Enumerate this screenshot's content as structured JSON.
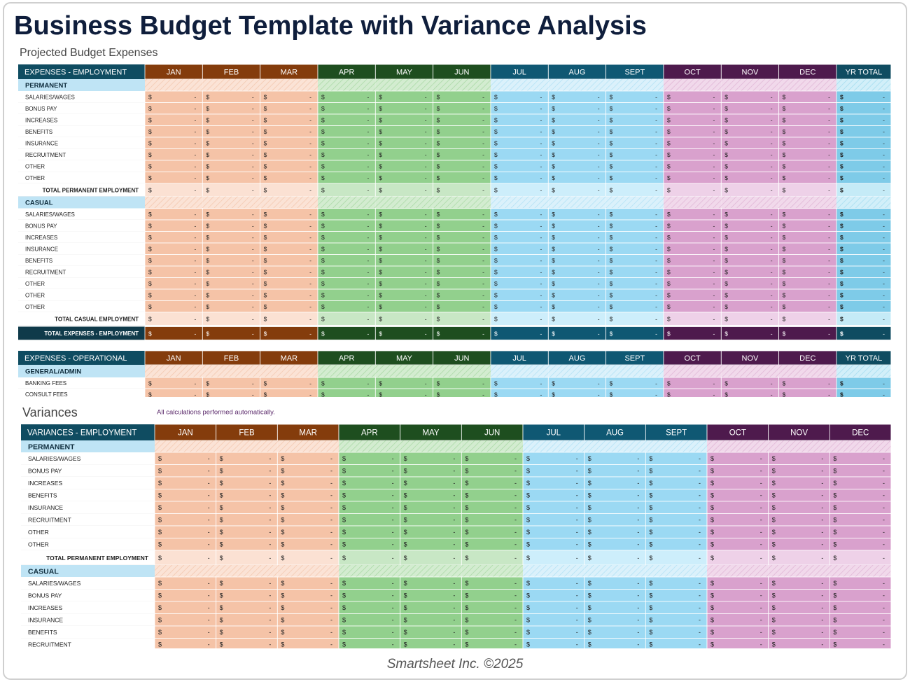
{
  "header": {
    "title": "Business Budget Template with Variance Analysis"
  },
  "currency": "$",
  "months": [
    "JAN",
    "FEB",
    "MAR",
    "APR",
    "MAY",
    "JUN",
    "JUL",
    "AUG",
    "SEPT",
    "OCT",
    "NOV",
    "DEC"
  ],
  "year_total_label": "YR TOTAL",
  "projected": {
    "title": "Projected Budget Expenses",
    "employment": {
      "header": "EXPENSES - EMPLOYMENT",
      "year_total": true,
      "sections": [
        {
          "label": "PERMANENT",
          "items": [
            {
              "label": "SALARIES/WAGES",
              "cells": [
                "-",
                "-",
                "-",
                "-",
                "-",
                "-",
                "-",
                "-",
                "-",
                "-",
                "-",
                "-",
                "-"
              ]
            },
            {
              "label": "BONUS PAY",
              "cells": [
                "-",
                "-",
                "-",
                "-",
                "-",
                "-",
                "-",
                "-",
                "-",
                "-",
                "-",
                "-",
                "-"
              ]
            },
            {
              "label": "INCREASES",
              "cells": [
                "-",
                "-",
                "-",
                "-",
                "-",
                "-",
                "-",
                "-",
                "-",
                "-",
                "-",
                "-",
                "-"
              ]
            },
            {
              "label": "BENEFITS",
              "cells": [
                "-",
                "-",
                "-",
                "-",
                "-",
                "-",
                "-",
                "-",
                "-",
                "-",
                "-",
                "-",
                "-"
              ]
            },
            {
              "label": "INSURANCE",
              "cells": [
                "-",
                "-",
                "-",
                "-",
                "-",
                "-",
                "-",
                "-",
                "-",
                "-",
                "-",
                "-",
                "-"
              ]
            },
            {
              "label": "RECRUITMENT",
              "cells": [
                "-",
                "-",
                "-",
                "-",
                "-",
                "-",
                "-",
                "-",
                "-",
                "-",
                "-",
                "-",
                "-"
              ]
            },
            {
              "label": "OTHER",
              "cells": [
                "-",
                "-",
                "-",
                "-",
                "-",
                "-",
                "-",
                "-",
                "-",
                "-",
                "-",
                "-",
                "-"
              ]
            },
            {
              "label": "OTHER",
              "cells": [
                "-",
                "-",
                "-",
                "-",
                "-",
                "-",
                "-",
                "-",
                "-",
                "-",
                "-",
                "-",
                "-"
              ]
            }
          ],
          "total": {
            "label": "TOTAL PERMANENT EMPLOYMENT",
            "cells": [
              "-",
              "-",
              "-",
              "-",
              "-",
              "-",
              "-",
              "-",
              "-",
              "-",
              "-",
              "-",
              "-"
            ]
          }
        },
        {
          "label": "CASUAL",
          "items": [
            {
              "label": "SALARIES/WAGES",
              "cells": [
                "-",
                "-",
                "-",
                "-",
                "-",
                "-",
                "-",
                "-",
                "-",
                "-",
                "-",
                "-",
                "-"
              ]
            },
            {
              "label": "BONUS PAY",
              "cells": [
                "-",
                "-",
                "-",
                "-",
                "-",
                "-",
                "-",
                "-",
                "-",
                "-",
                "-",
                "-",
                "-"
              ]
            },
            {
              "label": "INCREASES",
              "cells": [
                "-",
                "-",
                "-",
                "-",
                "-",
                "-",
                "-",
                "-",
                "-",
                "-",
                "-",
                "-",
                "-"
              ]
            },
            {
              "label": "INSURANCE",
              "cells": [
                "-",
                "-",
                "-",
                "-",
                "-",
                "-",
                "-",
                "-",
                "-",
                "-",
                "-",
                "-",
                "-"
              ]
            },
            {
              "label": "BENEFITS",
              "cells": [
                "-",
                "-",
                "-",
                "-",
                "-",
                "-",
                "-",
                "-",
                "-",
                "-",
                "-",
                "-",
                "-"
              ]
            },
            {
              "label": "RECRUITMENT",
              "cells": [
                "-",
                "-",
                "-",
                "-",
                "-",
                "-",
                "-",
                "-",
                "-",
                "-",
                "-",
                "-",
                "-"
              ]
            },
            {
              "label": "OTHER",
              "cells": [
                "-",
                "-",
                "-",
                "-",
                "-",
                "-",
                "-",
                "-",
                "-",
                "-",
                "-",
                "-",
                "-"
              ]
            },
            {
              "label": "OTHER",
              "cells": [
                "-",
                "-",
                "-",
                "-",
                "-",
                "-",
                "-",
                "-",
                "-",
                "-",
                "-",
                "-",
                "-"
              ]
            },
            {
              "label": "OTHER",
              "cells": [
                "-",
                "-",
                "-",
                "-",
                "-",
                "-",
                "-",
                "-",
                "-",
                "-",
                "-",
                "-",
                "-"
              ]
            }
          ],
          "total": {
            "label": "TOTAL CASUAL EMPLOYMENT",
            "cells": [
              "-",
              "-",
              "-",
              "-",
              "-",
              "-",
              "-",
              "-",
              "-",
              "-",
              "-",
              "-",
              "-"
            ]
          }
        }
      ],
      "grand_total": {
        "label": "TOTAL EXPENSES - EMPLOYMENT",
        "cells": [
          "-",
          "-",
          "-",
          "-",
          "-",
          "-",
          "-",
          "-",
          "-",
          "-",
          "-",
          "-",
          "-"
        ]
      }
    },
    "operational": {
      "header": "EXPENSES - OPERATIONAL",
      "year_total": true,
      "sections": [
        {
          "label": "GENERAL/ADMIN",
          "items": [
            {
              "label": "BANKING FEES",
              "cells": [
                "-",
                "-",
                "-",
                "-",
                "-",
                "-",
                "-",
                "-",
                "-",
                "-",
                "-",
                "-",
                "-"
              ]
            },
            {
              "label": "CONSULT FEES",
              "cells": [
                "-",
                "-",
                "-",
                "-",
                "-",
                "-",
                "-",
                "-",
                "-",
                "-",
                "-",
                "-",
                "-"
              ]
            }
          ]
        }
      ]
    }
  },
  "variances": {
    "title": "Variances",
    "note": "All calculations performed automatically.",
    "employment": {
      "header": "VARIANCES - EMPLOYMENT",
      "year_total": false,
      "sections": [
        {
          "label": "PERMANENT",
          "items": [
            {
              "label": "SALARIES/WAGES",
              "cells": [
                "-",
                "-",
                "-",
                "-",
                "-",
                "-",
                "-",
                "-",
                "-",
                "-",
                "-",
                "-"
              ]
            },
            {
              "label": "BONUS PAY",
              "cells": [
                "-",
                "-",
                "-",
                "-",
                "-",
                "-",
                "-",
                "-",
                "-",
                "-",
                "-",
                "-"
              ]
            },
            {
              "label": "INCREASES",
              "cells": [
                "-",
                "-",
                "-",
                "-",
                "-",
                "-",
                "-",
                "-",
                "-",
                "-",
                "-",
                "-"
              ]
            },
            {
              "label": "BENEFITS",
              "cells": [
                "-",
                "-",
                "-",
                "-",
                "-",
                "-",
                "-",
                "-",
                "-",
                "-",
                "-",
                "-"
              ]
            },
            {
              "label": "INSURANCE",
              "cells": [
                "-",
                "-",
                "-",
                "-",
                "-",
                "-",
                "-",
                "-",
                "-",
                "-",
                "-",
                "-"
              ]
            },
            {
              "label": "RECRUITMENT",
              "cells": [
                "-",
                "-",
                "-",
                "-",
                "-",
                "-",
                "-",
                "-",
                "-",
                "-",
                "-",
                "-"
              ]
            },
            {
              "label": "OTHER",
              "cells": [
                "-",
                "-",
                "-",
                "-",
                "-",
                "-",
                "-",
                "-",
                "-",
                "-",
                "-",
                "-"
              ]
            },
            {
              "label": "OTHER",
              "cells": [
                "-",
                "-",
                "-",
                "-",
                "-",
                "-",
                "-",
                "-",
                "-",
                "-",
                "-",
                "-"
              ]
            }
          ],
          "total": {
            "label": "TOTAL PERMANENT EMPLOYMENT",
            "cells": [
              "-",
              "-",
              "-",
              "-",
              "-",
              "-",
              "-",
              "-",
              "-",
              "-",
              "-",
              "-"
            ]
          }
        },
        {
          "label": "CASUAL",
          "items": [
            {
              "label": "SALARIES/WAGES",
              "cells": [
                "-",
                "-",
                "-",
                "-",
                "-",
                "-",
                "-",
                "-",
                "-",
                "-",
                "-",
                "-"
              ]
            },
            {
              "label": "BONUS PAY",
              "cells": [
                "-",
                "-",
                "-",
                "-",
                "-",
                "-",
                "-",
                "-",
                "-",
                "-",
                "-",
                "-"
              ]
            },
            {
              "label": "INCREASES",
              "cells": [
                "-",
                "-",
                "-",
                "-",
                "-",
                "-",
                "-",
                "-",
                "-",
                "-",
                "-",
                "-"
              ]
            },
            {
              "label": "INSURANCE",
              "cells": [
                "-",
                "-",
                "-",
                "-",
                "-",
                "-",
                "-",
                "-",
                "-",
                "-",
                "-",
                "-"
              ]
            },
            {
              "label": "BENEFITS",
              "cells": [
                "-",
                "-",
                "-",
                "-",
                "-",
                "-",
                "-",
                "-",
                "-",
                "-",
                "-",
                "-"
              ]
            },
            {
              "label": "RECRUITMENT",
              "cells": [
                "-",
                "-",
                "-",
                "-",
                "-",
                "-",
                "-",
                "-",
                "-",
                "-",
                "-",
                "-"
              ]
            }
          ]
        }
      ]
    }
  },
  "footer": {
    "text": "Smartsheet Inc. ©2025"
  }
}
